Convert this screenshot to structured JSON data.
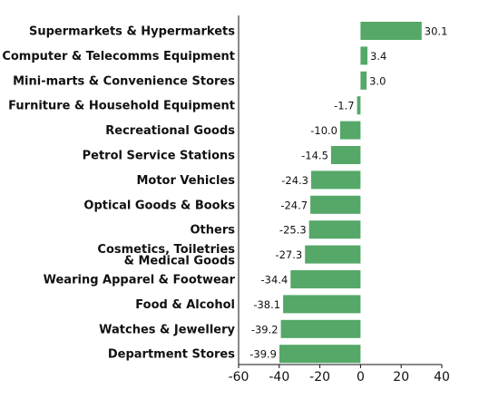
{
  "chart_data": {
    "type": "bar",
    "orientation": "horizontal",
    "title": "",
    "xlabel": "",
    "ylabel": "",
    "categories": [
      "Supermarkets & Hypermarkets",
      "Computer & Telecomms Equipment",
      "Mini-marts & Convenience Stores",
      "Furniture & Household Equipment",
      "Recreational Goods",
      "Petrol Service Stations",
      "Motor Vehicles",
      "Optical Goods & Books",
      "Others",
      "Cosmetics, Toiletries & Medical Goods",
      "Wearing Apparel & Footwear",
      "Food & Alcohol",
      "Watches & Jewellery",
      "Department Stores"
    ],
    "category_lines": [
      [
        "Supermarkets & Hypermarkets"
      ],
      [
        "Computer & Telecomms Equipment"
      ],
      [
        "Mini-marts & Convenience Stores"
      ],
      [
        "Furniture & Household Equipment"
      ],
      [
        "Recreational Goods"
      ],
      [
        "Petrol Service Stations"
      ],
      [
        "Motor Vehicles"
      ],
      [
        "Optical Goods & Books"
      ],
      [
        "Others"
      ],
      [
        "Cosmetics, Toiletries",
        "& Medical Goods"
      ],
      [
        "Wearing Apparel & Footwear"
      ],
      [
        "Food & Alcohol"
      ],
      [
        "Watches & Jewellery"
      ],
      [
        "Department Stores"
      ]
    ],
    "values": [
      30.1,
      3.4,
      3.0,
      -1.7,
      -10.0,
      -14.5,
      -24.3,
      -24.7,
      -25.3,
      -27.3,
      -34.4,
      -38.1,
      -39.2,
      -39.9
    ],
    "value_labels": [
      "30.1",
      "3.4",
      "3.0",
      "-1.7",
      "-10.0",
      "-14.5",
      "-24.3",
      "-24.7",
      "-25.3",
      "-27.3",
      "-34.4",
      "-38.1",
      "-39.2",
      "-39.9"
    ],
    "xlim": [
      -60,
      40
    ],
    "xticks": [
      -60,
      -40,
      -20,
      0,
      20,
      40
    ],
    "xtick_labels": [
      "-60",
      "-40",
      "-20",
      "0",
      "20",
      "40"
    ],
    "grid": false,
    "legend": "none",
    "bar_color": "#55a868",
    "axis_color": "#111111"
  }
}
